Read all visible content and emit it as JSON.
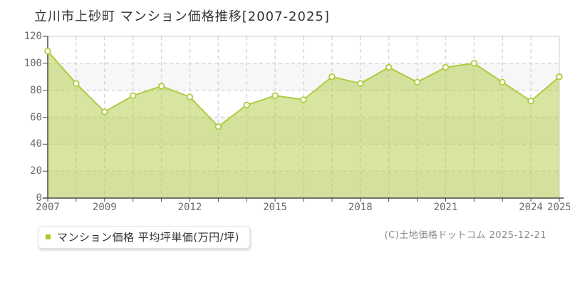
{
  "header": {
    "title": "立川市上砂町 マンション価格推移[2007-2025]"
  },
  "legend": {
    "label": "マンション価格 平均坪単価(万円/坪)",
    "marker_color": "#a3cc2a"
  },
  "footer": {
    "copyright": "(C)土地価格ドットコム 2025-12-21"
  },
  "colors": {
    "line": "#afcb41",
    "area_fill": "#afcb41",
    "area_fill_opacity": 0.5,
    "point_fill": "#ffffff",
    "grid": "#d6d6d6",
    "band": "#f7f7f7",
    "band_alt": "#ffffff",
    "axis": "#4a4a4a",
    "plot_border": "#cccccc",
    "tick_label": "#6b6b6b"
  },
  "chart_data": {
    "type": "area",
    "title": "立川市上砂町 マンション価格推移[2007-2025]",
    "x": [
      2007,
      2008,
      2009,
      2010,
      2011,
      2012,
      2013,
      2014,
      2015,
      2016,
      2017,
      2018,
      2019,
      2020,
      2021,
      2022,
      2023,
      2024,
      2025
    ],
    "values": [
      109,
      85,
      64,
      76,
      83,
      75,
      53,
      69,
      76,
      73,
      90,
      85,
      97,
      86,
      97,
      100,
      86,
      72,
      90
    ],
    "series": [
      {
        "name": "マンション価格 平均坪単価(万円/坪)",
        "values": [
          109,
          85,
          64,
          76,
          83,
          75,
          53,
          69,
          76,
          73,
          90,
          85,
          97,
          86,
          97,
          100,
          86,
          72,
          90
        ]
      }
    ],
    "xlabel": "",
    "ylabel": "",
    "ylim": [
      0,
      120
    ],
    "y_ticks": [
      0,
      20,
      40,
      60,
      80,
      100,
      120
    ],
    "x_tick_labels": [
      "2007",
      "2009",
      "2012",
      "2015",
      "2018",
      "2021",
      "2024",
      "2025"
    ],
    "grid": true,
    "legend_position": "bottom-left"
  }
}
